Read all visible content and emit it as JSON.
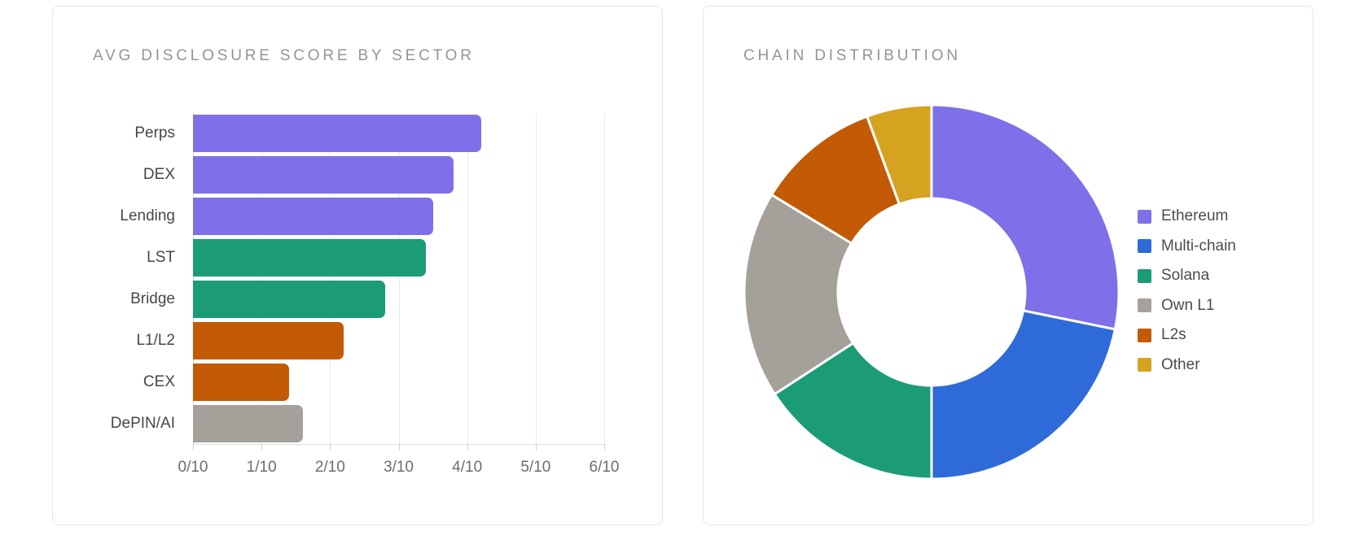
{
  "palette": {
    "purple": "#7d70e8",
    "blue": "#2f6ad9",
    "green": "#1b9c77",
    "gray": "#a5a19a",
    "orange": "#c25a06",
    "yellow": "#d5a31f",
    "title_text": "#97948e",
    "axis_text": "#6d6d6d",
    "label_text": "#474747",
    "legend_text": "#4c4c4c",
    "gridline": "#ebebeb",
    "card_border": "#e7e7e7"
  },
  "chart_data": [
    {
      "type": "bar",
      "orientation": "horizontal",
      "title": "AVG DISCLOSURE SCORE BY SECTOR",
      "categories": [
        "Perps",
        "DEX",
        "Lending",
        "LST",
        "Bridge",
        "L1/L2",
        "CEX",
        "DePIN/AI"
      ],
      "values": [
        4.2,
        3.8,
        3.5,
        3.4,
        2.8,
        2.2,
        1.4,
        1.6
      ],
      "bar_color_keys": [
        "purple",
        "purple",
        "purple",
        "green",
        "green",
        "orange",
        "orange",
        "gray"
      ],
      "xlabel": "",
      "ylabel": "",
      "xlim": [
        0,
        6
      ],
      "x_tick_labels": [
        "0/10",
        "1/10",
        "2/10",
        "3/10",
        "4/10",
        "5/10",
        "6/10"
      ],
      "grid": true,
      "legend": false
    },
    {
      "type": "pie",
      "subtype": "donut",
      "title": "CHAIN DISTRIBUTION",
      "labels": [
        "Ethereum",
        "Multi-chain",
        "Solana",
        "Own L1",
        "L2s",
        "Other"
      ],
      "values_percent": [
        28.2,
        21.8,
        15.8,
        17.9,
        10.7,
        5.6
      ],
      "color_keys": [
        "purple",
        "blue",
        "green",
        "gray",
        "orange",
        "yellow"
      ],
      "start_angle_deg": 0,
      "direction": "clockwise",
      "inner_radius_ratio": 0.5,
      "slice_gap_color": "#ffffff",
      "legend_position": "right"
    }
  ]
}
